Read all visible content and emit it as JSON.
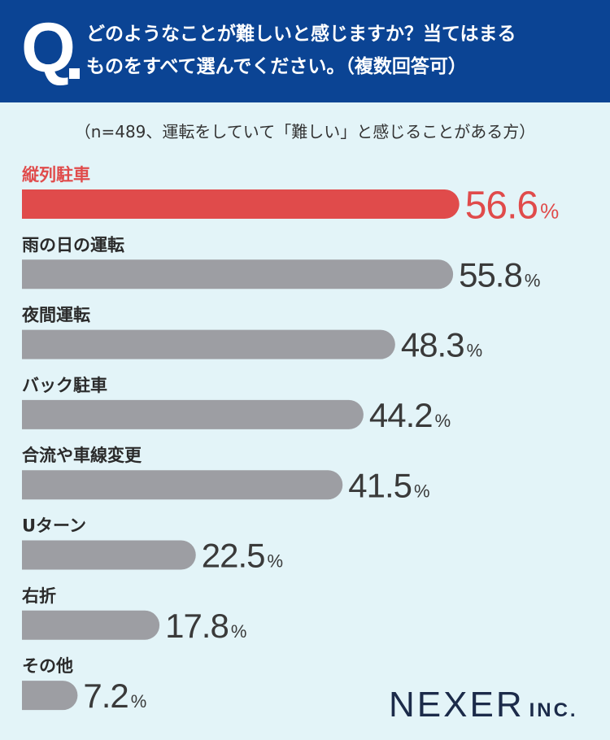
{
  "header": {
    "q_letter": "Q",
    "question_line1": "どのようなことが難しいと感じますか？当てはまる",
    "question_line2": "ものをすべて選んでください。（複数回答可）"
  },
  "subtitle": "（n=489、運転をしていて「難しい」と感じることがある方）",
  "logo": {
    "main": "NEXER",
    "inc": "INC."
  },
  "colors": {
    "header_bg": "#0b4494",
    "background": "#e3f4f8",
    "highlight": "#e04b4b",
    "bar_gray": "#9d9ea3",
    "value_text": "#3a3a3a"
  },
  "chart_data": {
    "type": "bar",
    "orientation": "horizontal",
    "categories": [
      "縦列駐車",
      "雨の日の運転",
      "夜間運転",
      "バック駐車",
      "合流や車線変更",
      "Uターン",
      "右折",
      "その他"
    ],
    "values": [
      56.6,
      55.8,
      48.3,
      44.2,
      41.5,
      22.5,
      17.8,
      7.2
    ],
    "value_labels": [
      "56.6",
      "55.8",
      "48.3",
      "44.2",
      "41.5",
      "22.5",
      "17.8",
      "7.2"
    ],
    "unit": "%",
    "highlight_index": 0,
    "xlim": [
      0,
      100
    ],
    "grid": false,
    "legend": "none"
  }
}
